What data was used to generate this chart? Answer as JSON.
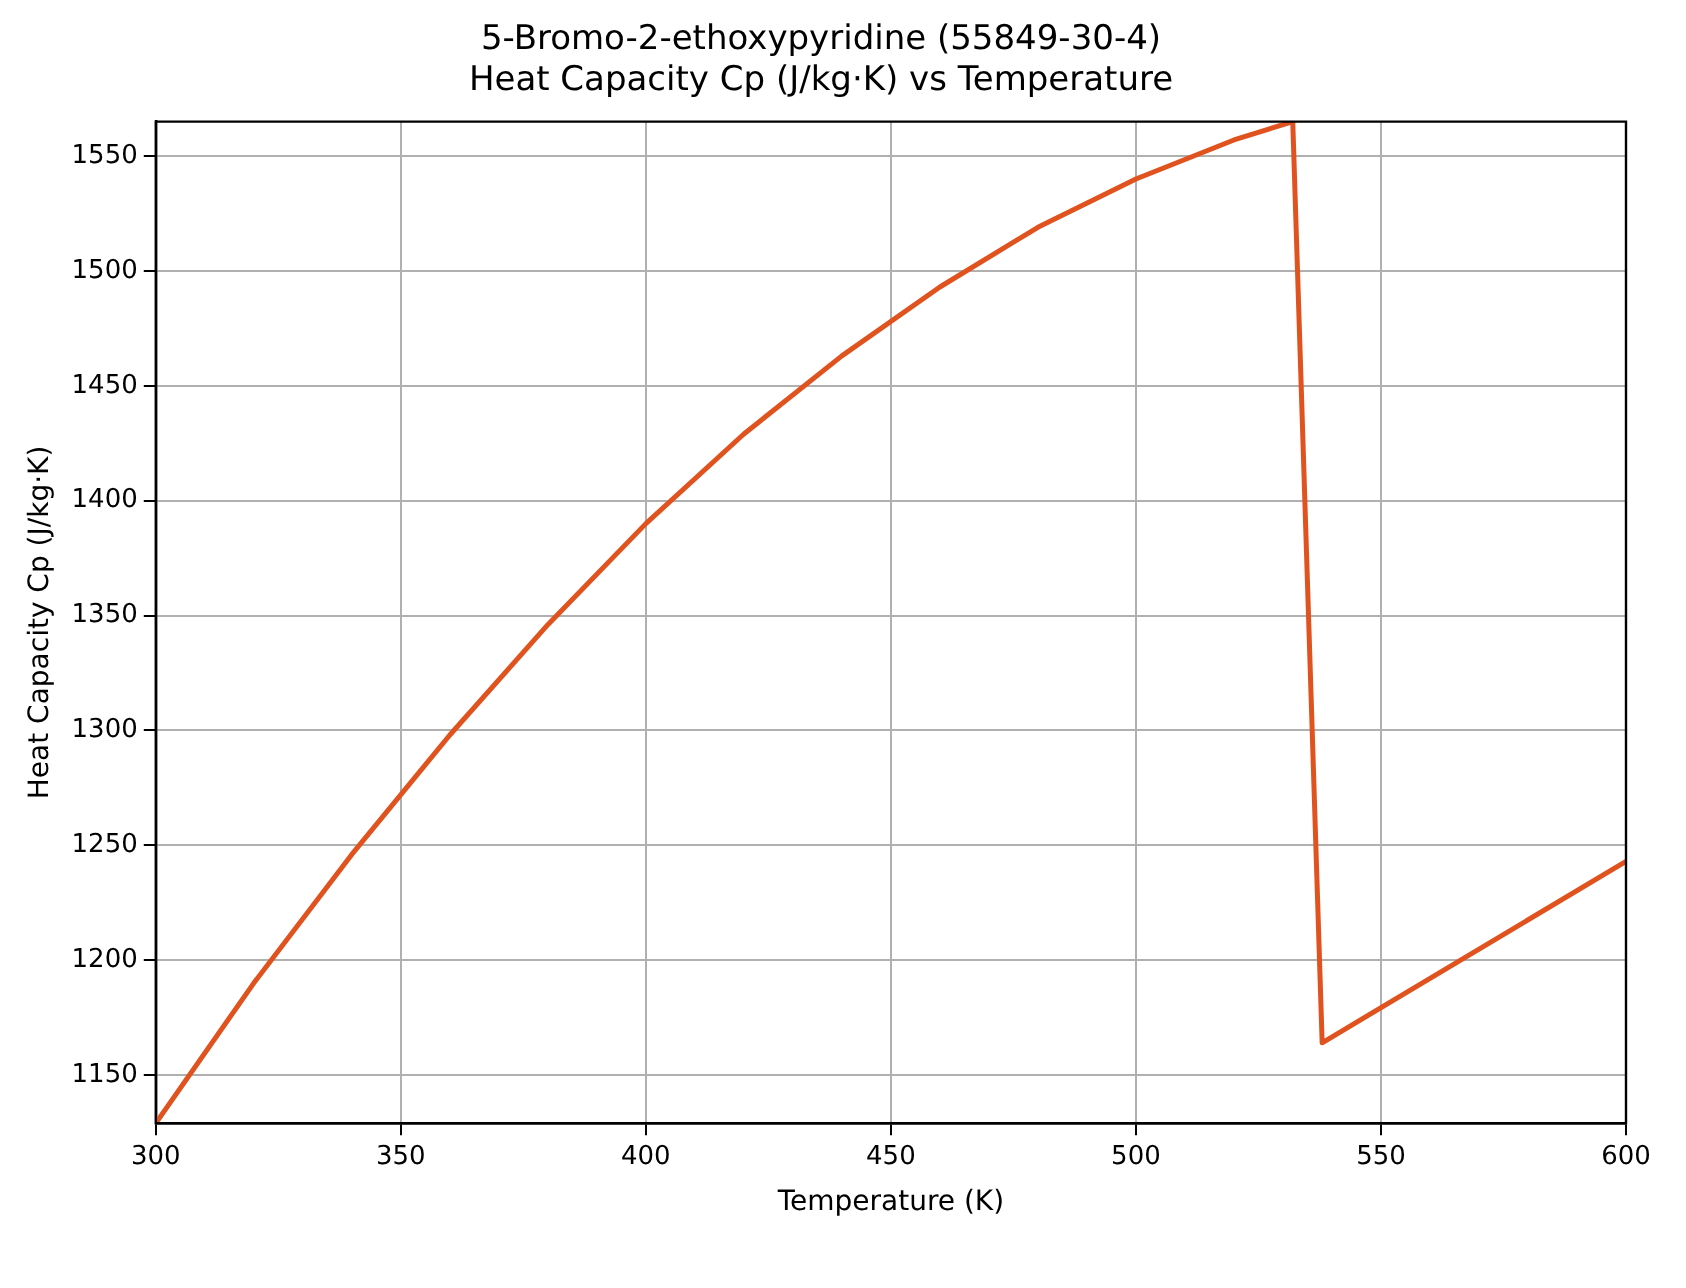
{
  "chart_data": {
    "type": "line",
    "title": "5-Bromo-2-ethoxypyridine (55849-30-4)\nHeat Capacity Cp (J/kg·K) vs Temperature",
    "xlabel": "Temperature (K)",
    "ylabel": "Heat Capacity Cp (J/kg·K)",
    "series": [
      {
        "color": "#e0531f",
        "x": [
          300,
          320,
          340,
          360,
          380,
          400,
          420,
          440,
          460,
          480,
          500,
          520,
          532,
          538,
          600
        ],
        "values": [
          1129,
          1190,
          1246,
          1298,
          1346,
          1390,
          1429,
          1463,
          1493,
          1519,
          1540,
          1557,
          1565,
          1164,
          1243
        ]
      }
    ],
    "xlim": [
      300,
      600
    ],
    "xticks": [
      300,
      350,
      400,
      450,
      500,
      550,
      600
    ],
    "ylim": [
      1129,
      1565
    ],
    "yticks": [
      1150,
      1200,
      1250,
      1300,
      1350,
      1400,
      1450,
      1500,
      1550
    ],
    "grid": true,
    "legend": false,
    "marker": "none",
    "line_style": "solid"
  }
}
